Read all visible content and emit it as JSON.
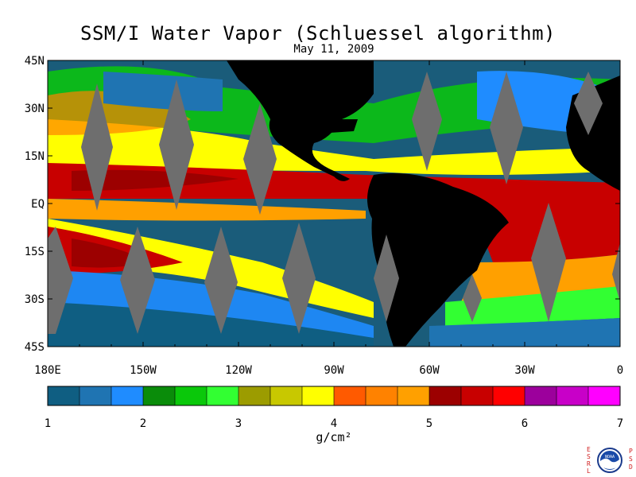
{
  "title": "SSM/I Water Vapor (Schluessel algorithm)",
  "subtitle": "May 11, 2009",
  "map": {
    "lat_labels": [
      "45N",
      "30N",
      "15N",
      "EQ",
      "15S",
      "30S",
      "45S"
    ],
    "lon_labels": [
      "180E",
      "150W",
      "120W",
      "90W",
      "60W",
      "30W",
      "0"
    ],
    "land_color": "#000000",
    "ocean_base_color": "#1a5c7a",
    "swath_gap_color": "#6e6e6e"
  },
  "colorbar": {
    "colors": [
      "#0f5e82",
      "#1f74b2",
      "#1f8cff",
      "#0a8c0a",
      "#0ac80a",
      "#32ff32",
      "#9c9c00",
      "#c8c800",
      "#ffff00",
      "#ff5a00",
      "#ff8200",
      "#ffa000",
      "#9c0000",
      "#c80000",
      "#ff0000",
      "#9c009c",
      "#c800c8",
      "#ff00ff"
    ],
    "tick_labels": [
      "1",
      "2",
      "3",
      "4",
      "5",
      "6",
      "7"
    ],
    "unit_label": "g/cm²"
  },
  "logo": {
    "left_letters": [
      "E",
      "S",
      "R",
      "L"
    ],
    "right_letters": [
      "P",
      "S",
      "D"
    ],
    "center_text": "NOAA"
  }
}
